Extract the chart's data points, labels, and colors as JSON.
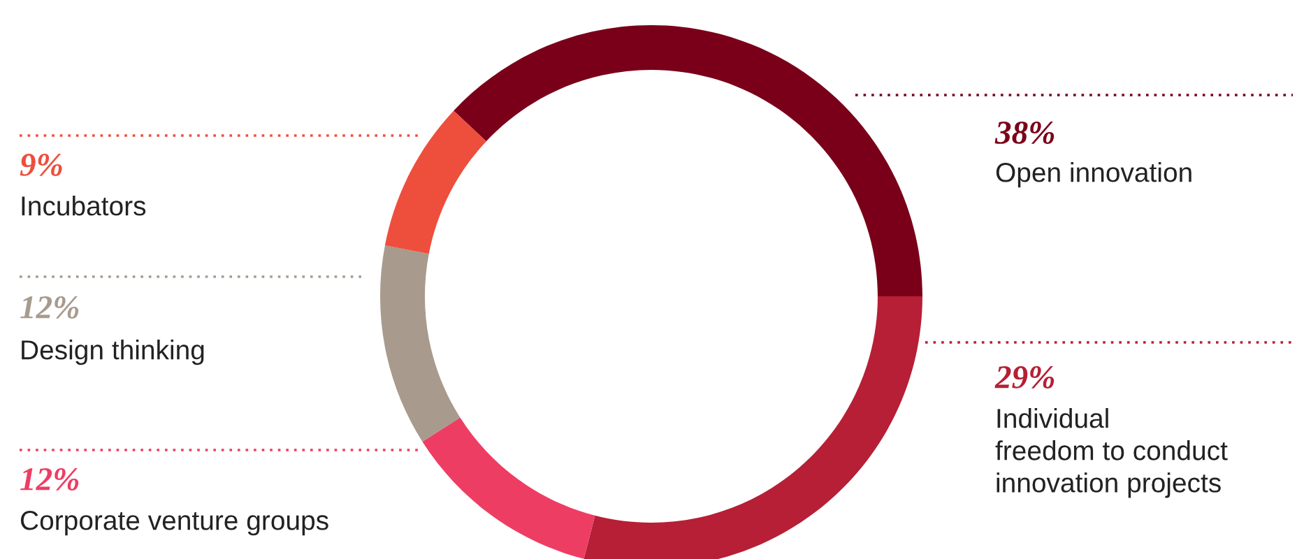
{
  "chart_data": {
    "type": "donut",
    "categories": [
      "Open innovation",
      "Individual\nfreedom to conduct\ninnovation projects",
      "Corporate venture groups",
      "Design thinking",
      "Incubators"
    ],
    "values": [
      38,
      29,
      12,
      12,
      9
    ],
    "value_labels": [
      "38%",
      "29%",
      "12%",
      "12%",
      "9%"
    ],
    "colors": [
      "#7a0019",
      "#b61f35",
      "#ee3d63",
      "#a89a8d",
      "#ee4e3c"
    ],
    "legend": false
  }
}
